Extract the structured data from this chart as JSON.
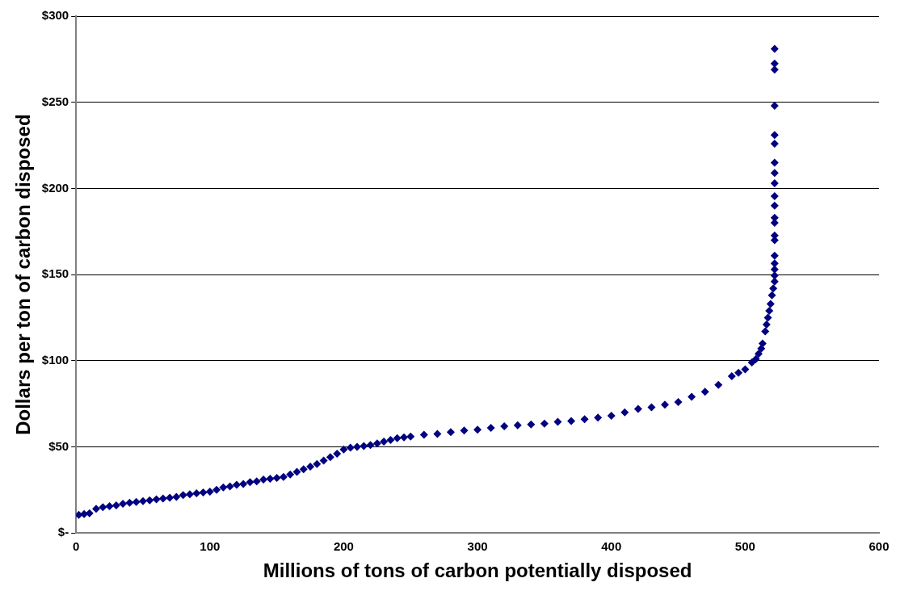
{
  "chart_data": {
    "type": "scatter",
    "xlabel": "Millions of tons of carbon potentially disposed",
    "ylabel": "Dollars per ton of carbon disposed",
    "xlim": [
      0,
      600
    ],
    "xticks": [
      0,
      100,
      200,
      300,
      400,
      500,
      600
    ],
    "ylim": [
      0,
      300
    ],
    "yticks": [
      {
        "value": 0,
        "label": "$-"
      },
      {
        "value": 50,
        "label": "$50"
      },
      {
        "value": 100,
        "label": "$100"
      },
      {
        "value": 150,
        "label": "$150"
      },
      {
        "value": 200,
        "label": "$200"
      },
      {
        "value": 250,
        "label": "$250"
      },
      {
        "value": 300,
        "label": "$300"
      }
    ],
    "grid": "y",
    "marker": "diamond",
    "legend": false,
    "series": [
      {
        "color": "#000080",
        "x": [
          2,
          6,
          10,
          15,
          20,
          25,
          30,
          35,
          40,
          45,
          50,
          55,
          60,
          65,
          70,
          75,
          80,
          85,
          90,
          95,
          100,
          105,
          110,
          115,
          120,
          125,
          130,
          135,
          140,
          145,
          150,
          155,
          160,
          165,
          170,
          175,
          180,
          185,
          190,
          195,
          200,
          205,
          210,
          215,
          220,
          225,
          230,
          235,
          240,
          245,
          250,
          260,
          270,
          280,
          290,
          300,
          310,
          320,
          330,
          340,
          350,
          360,
          370,
          380,
          390,
          400,
          410,
          420,
          430,
          440,
          450,
          460,
          470,
          480,
          490,
          495,
          500,
          505,
          508,
          510,
          512,
          513,
          515,
          516,
          517,
          518,
          519,
          520,
          521,
          522,
          522,
          522,
          522,
          522,
          522,
          522,
          522,
          522,
          522,
          522,
          522,
          522,
          522,
          522,
          522,
          522,
          522,
          522,
          522
        ],
        "values": [
          10.5,
          11,
          11.5,
          14,
          15,
          15.5,
          16,
          17,
          17.5,
          18,
          18.5,
          19,
          19.5,
          20,
          20.5,
          21,
          22,
          22.5,
          23,
          23.5,
          24,
          25,
          26.5,
          27,
          28,
          28.5,
          29.5,
          30,
          31,
          31.5,
          32,
          32.5,
          34,
          35.5,
          37,
          38.5,
          40,
          42,
          44,
          46,
          48.5,
          49.5,
          50,
          50.5,
          51,
          52,
          53,
          54,
          55,
          55.5,
          56,
          57,
          57.5,
          58.5,
          59.5,
          60,
          61,
          62,
          62.5,
          63,
          63.5,
          64.5,
          65,
          66,
          67,
          68,
          70,
          72,
          73,
          74.5,
          76,
          79,
          82,
          86,
          91,
          93,
          95,
          99,
          101,
          104,
          107,
          110,
          117,
          121,
          125,
          129,
          133,
          138,
          142,
          146,
          149.5,
          153,
          156.5,
          161,
          170,
          172.7,
          180,
          183,
          190,
          195.5,
          203,
          209,
          215,
          226,
          231,
          248,
          269,
          272.5,
          281
        ]
      }
    ]
  }
}
